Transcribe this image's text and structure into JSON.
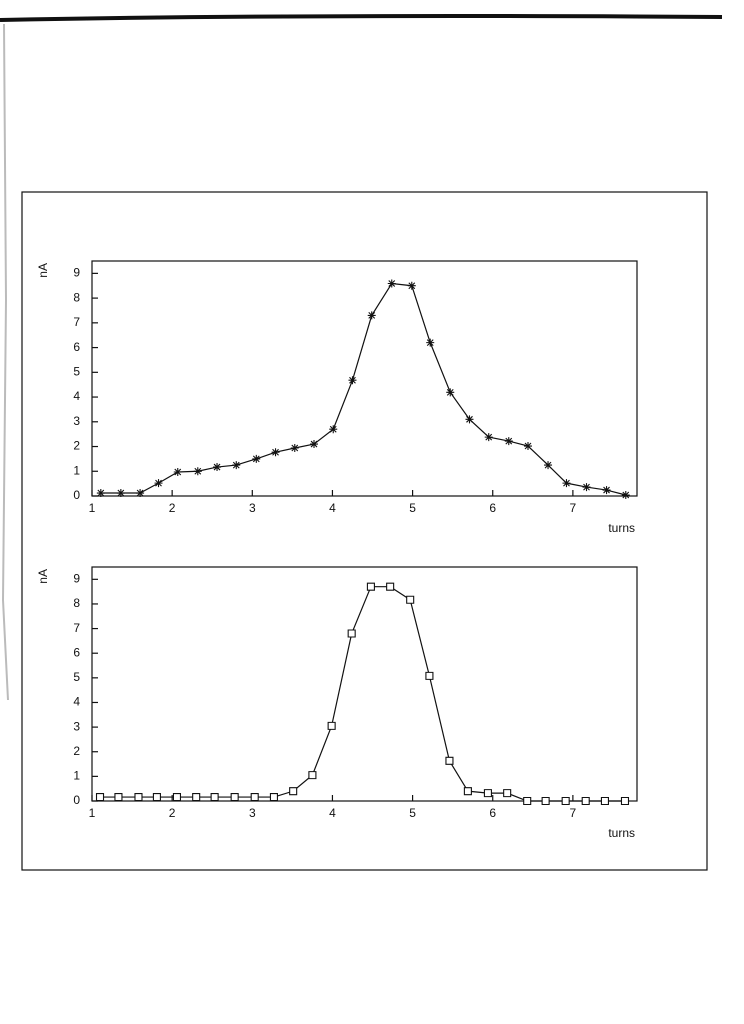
{
  "chart_data": [
    {
      "type": "line",
      "marker": "star",
      "color": "#111111",
      "ylabel": "nA",
      "xlabel": "turns",
      "xlim": [
        1,
        7.8
      ],
      "xticks": [
        1,
        2,
        3,
        4,
        5,
        6,
        7
      ],
      "ylim": [
        0,
        9.5
      ],
      "yticks": [
        0,
        1,
        2,
        3,
        4,
        5,
        6,
        7,
        8,
        9
      ],
      "series": [
        {
          "x": [
            1.11,
            1.36,
            1.6,
            1.83,
            2.07,
            2.32,
            2.56,
            2.8,
            3.05,
            3.29,
            3.53,
            3.77,
            4.01,
            4.25,
            4.49,
            4.74,
            4.99,
            5.22,
            5.47,
            5.71,
            5.95,
            6.2,
            6.44,
            6.69,
            6.92,
            7.17,
            7.42,
            7.66
          ],
          "values": [
            0.12,
            0.12,
            0.12,
            0.52,
            0.97,
            1.0,
            1.17,
            1.25,
            1.5,
            1.77,
            1.94,
            2.1,
            2.7,
            4.68,
            7.3,
            8.59,
            8.5,
            6.2,
            4.19,
            3.1,
            2.38,
            2.22,
            2.02,
            1.25,
            0.52,
            0.36,
            0.24,
            0.04
          ]
        }
      ]
    },
    {
      "type": "line",
      "marker": "square",
      "color": "#111111",
      "ylabel": "nA",
      "xlabel": "turns",
      "xlim": [
        1,
        7.8
      ],
      "xticks": [
        1,
        2,
        3,
        4,
        5,
        6,
        7
      ],
      "ylim": [
        0,
        9.5
      ],
      "yticks": [
        0,
        1,
        2,
        3,
        4,
        5,
        6,
        7,
        8,
        9
      ],
      "series": [
        {
          "x": [
            1.1,
            1.33,
            1.58,
            1.81,
            2.06,
            2.3,
            2.53,
            2.78,
            3.03,
            3.27,
            3.51,
            3.75,
            3.99,
            4.24,
            4.48,
            4.72,
            4.97,
            5.21,
            5.46,
            5.69,
            5.94,
            6.18,
            6.43,
            6.66,
            6.91,
            7.16,
            7.4,
            7.65
          ],
          "values": [
            0.16,
            0.16,
            0.16,
            0.16,
            0.16,
            0.16,
            0.16,
            0.16,
            0.16,
            0.16,
            0.4,
            1.05,
            3.05,
            6.8,
            8.7,
            8.7,
            8.17,
            5.08,
            1.63,
            0.4,
            0.32,
            0.32,
            0,
            0,
            0,
            0,
            0,
            0
          ]
        }
      ]
    }
  ]
}
